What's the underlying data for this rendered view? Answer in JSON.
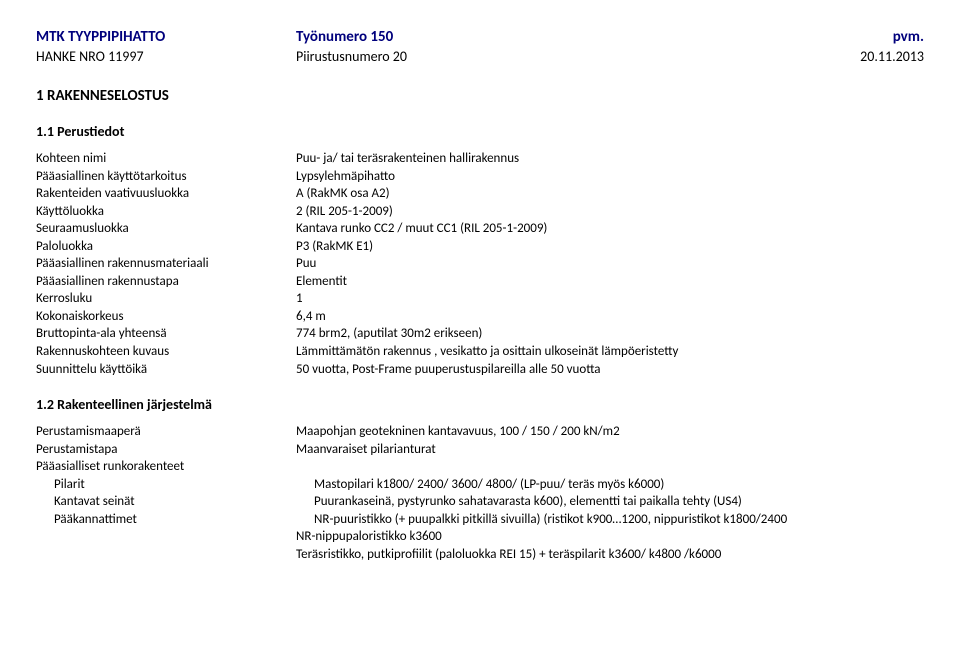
{
  "header": {
    "title": "MTK TYYPPIPIHATTO",
    "project_no": "HANKE NRO 11997",
    "work_no": "Työnumero 150",
    "drawing_no": "Piirustusnumero 20",
    "date_label": "pvm.",
    "date_value": "20.11.2013"
  },
  "section1": {
    "heading": "1 RAKENNESELOSTUS",
    "sub1": {
      "heading": "1.1 Perustiedot",
      "rows": [
        {
          "key": "Kohteen nimi",
          "val": "Puu- ja/ tai teräsrakenteinen hallirakennus"
        },
        {
          "key": "Pääasiallinen käyttötarkoitus",
          "val": "Lypsylehmäpihatto"
        },
        {
          "key": "Rakenteiden vaativuusluokka",
          "val": "A (RakMK osa A2)"
        },
        {
          "key": "Käyttöluokka",
          "val": "2 (RIL 205-1-2009)"
        },
        {
          "key": "Seuraamusluokka",
          "val": "Kantava runko CC2 / muut CC1 (RIL 205-1-2009)"
        },
        {
          "key": "Paloluokka",
          "val": "P3 (RakMK E1)"
        },
        {
          "key": "Pääasiallinen rakennusmateriaali",
          "val": "Puu"
        },
        {
          "key": "Pääasiallinen rakennustapa",
          "val": "Elementit"
        },
        {
          "key": "Kerrosluku",
          "val": "1"
        },
        {
          "key": "Kokonaiskorkeus",
          "val": "6,4 m"
        },
        {
          "key": "Bruttopinta-ala yhteensä",
          "val": "774 brm2, (aputilat 30m2 erikseen)"
        },
        {
          "key": "Rakennuskohteen kuvaus",
          "val": "Lämmittämätön rakennus , vesikatto ja osittain ulkoseinät lämpöeristetty"
        },
        {
          "key": "Suunnittelu käyttöikä",
          "val": "50 vuotta, Post-Frame puuperustuspilareilla alle 50 vuotta"
        }
      ]
    },
    "sub2": {
      "heading": "1.2 Rakenteellinen järjestelmä",
      "rows": [
        {
          "key": "Perustamismaaperä",
          "val": "Maapohjan geotekninen kantavavuus, 100 / 150 / 200 kN/m2"
        },
        {
          "key": "Perustamistapa",
          "val": "Maanvaraiset pilarianturat"
        },
        {
          "key": "Pääasialliset runkorakenteet",
          "val": ""
        }
      ],
      "indented_rows": [
        {
          "key": "Pilarit",
          "val": "Mastopilari k1800/ 2400/ 3600/ 4800/ (LP-puu/ teräs myös k6000)"
        },
        {
          "key": "Kantavat seinät",
          "val": "Puurankaseinä, pystyrunko sahatavarasta k600), elementti tai paikalla tehty (US4)"
        },
        {
          "key": "Pääkannattimet",
          "val": "NR-puuristikko (+ puupalkki pitkillä sivuilla) (ristikot k900…1200, nippuristikot k1800/2400"
        }
      ],
      "extra_lines": [
        "NR-nippupaloristikko k3600",
        "Teräsristikko, putkiprofiilit (paloluokka REI 15) + teräspilarit k3600/ k4800 /k6000"
      ]
    }
  }
}
